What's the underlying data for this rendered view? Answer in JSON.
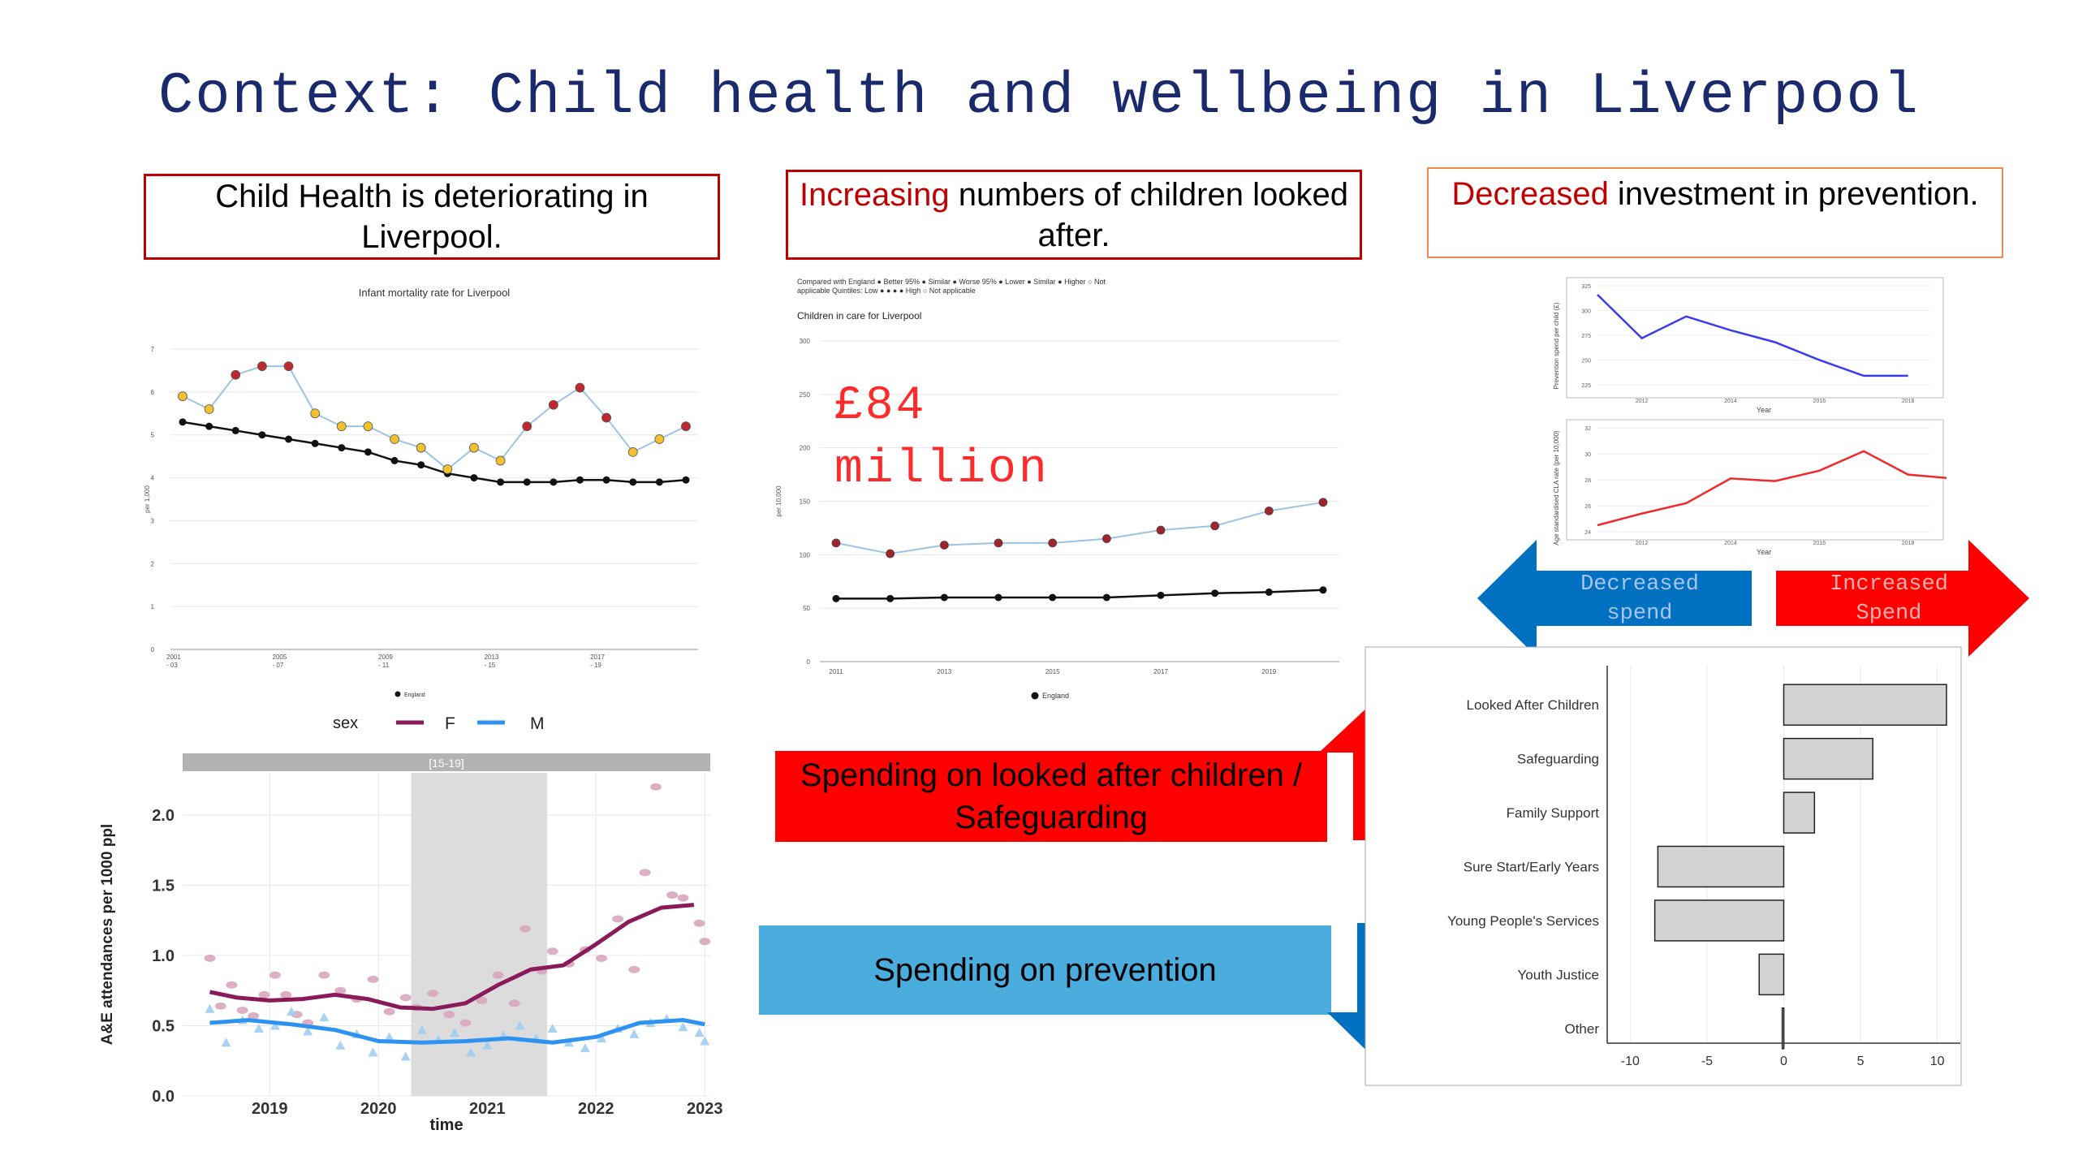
{
  "title": "Context: Child health and wellbeing in Liverpool",
  "headings": {
    "h1": "Child Health is deteriorating in Liverpool.",
    "h2_hl": "Increasing",
    "h2_rest": " numbers of children looked after.",
    "h3_hl": "Decreased",
    "h3_rest": " investment in prevention."
  },
  "money": {
    "line1": "£84",
    "line2": "million"
  },
  "arrows": {
    "decreased": "Decreased spend",
    "increased": "Increased Spend"
  },
  "banners": {
    "lac": "Spending on looked after children / Safeguarding",
    "prevention": "Spending on prevention"
  },
  "colors": {
    "red": "#ff0000",
    "blue": "#0070c0",
    "lightblue": "#4bacde",
    "navy": "#1a2a6c",
    "purple": "#8b1a5a",
    "mblue": "#2e93f0"
  },
  "chart_data": [
    {
      "id": "infant",
      "type": "line",
      "title": "Infant mortality rate for Liverpool",
      "ylabel": "per 1,000",
      "ylim": [
        0,
        7
      ],
      "yticks": [
        "0",
        "1",
        "2",
        "3",
        "4",
        "5",
        "6",
        "7"
      ],
      "xticks": [
        [
          "2001",
          "- 03"
        ],
        [
          "2005",
          "- 07"
        ],
        [
          "2009",
          "- 11"
        ],
        [
          "2013",
          "- 15"
        ],
        [
          "2017",
          "- 19"
        ]
      ],
      "legend": "England",
      "series": [
        {
          "name": "Liverpool",
          "values": [
            5.9,
            5.6,
            6.4,
            6.6,
            6.6,
            5.5,
            5.2,
            5.2,
            4.9,
            4.7,
            4.2,
            4.7,
            4.4,
            5.2,
            5.7,
            6.1,
            5.4,
            4.6,
            4.9,
            5.2
          ]
        },
        {
          "name": "England",
          "values": [
            5.3,
            5.2,
            5.1,
            5.0,
            4.9,
            4.8,
            4.7,
            4.6,
            4.4,
            4.3,
            4.1,
            4.0,
            3.9,
            3.9,
            3.9,
            3.95,
            3.95,
            3.9,
            3.9,
            3.95
          ]
        }
      ],
      "point_status": [
        "Similar",
        "Similar",
        "Worse",
        "Worse",
        "Worse",
        "Similar",
        "Similar",
        "Similar",
        "Similar",
        "Similar",
        "Similar",
        "Similar",
        "Similar",
        "Worse",
        "Worse",
        "Worse",
        "Worse",
        "Similar",
        "Similar",
        "Worse"
      ]
    },
    {
      "id": "care",
      "type": "line",
      "title": "Children in care for Liverpool",
      "legend_line1": "Compared with England  ● Better 95%  ● Similar  ● Worse 95%  ● Lower  ● Similar  ● Higher  ○ Not",
      "legend_line2": "applicable Quintiles: Low  ●  ●  ●  ● High  ○ Not applicable",
      "ylabel": "per 10,000",
      "ylim": [
        0,
        300
      ],
      "yticks": [
        "0",
        "50",
        "100",
        "150",
        "200",
        "250",
        "300"
      ],
      "xticks": [
        "2011",
        "2013",
        "2015",
        "2017",
        "2019"
      ],
      "legend": "England",
      "series": [
        {
          "name": "Liverpool",
          "values": [
            111,
            101,
            109,
            111,
            111,
            115,
            123,
            127,
            141,
            149
          ]
        },
        {
          "name": "England",
          "values": [
            59,
            59,
            60,
            60,
            60,
            60,
            62,
            64,
            65,
            67
          ]
        }
      ]
    },
    {
      "id": "prevention",
      "type": "line",
      "ylabel": "Prevention spend per child (£)",
      "xlabel": "Year",
      "ylim": [
        220,
        325
      ],
      "yticks": [
        "225",
        "250",
        "275",
        "300",
        "325"
      ],
      "xticks": [
        "2012",
        "2014",
        "2016",
        "2018"
      ],
      "x": [
        2011,
        2012,
        2013,
        2014,
        2015,
        2016,
        2017,
        2018
      ],
      "values": [
        316,
        272,
        294,
        280,
        268,
        250,
        234,
        234
      ],
      "color": "#3a3af0"
    },
    {
      "id": "cla",
      "type": "line",
      "ylabel": "Age standardised CLA rate (per 10,000)",
      "xlabel": "Year",
      "ylim": [
        24,
        32
      ],
      "yticks": [
        "24",
        "26",
        "28",
        "30",
        "32"
      ],
      "xticks": [
        "2012",
        "2014",
        "2016",
        "2018"
      ],
      "x": [
        2011,
        2012,
        2013,
        2014,
        2015,
        2016,
        2017,
        2018,
        2019
      ],
      "values": [
        24.5,
        25.4,
        26.2,
        28.1,
        27.9,
        28.7,
        30.2,
        28.4,
        28.1
      ],
      "color": "#ee2a2a"
    },
    {
      "id": "ae",
      "type": "scatter",
      "panel": "[15-19]",
      "xlabel": "time",
      "ylabel": "A&E attendances per 1000 ppl",
      "legend_title": "sex",
      "legend": [
        "F",
        "M"
      ],
      "ylim": [
        0,
        2.3
      ],
      "yticks": [
        "0.0",
        "0.5",
        "1.0",
        "1.5",
        "2.0"
      ],
      "xticks": [
        "2019",
        "2020",
        "2021",
        "2022",
        "2023"
      ],
      "xlim": [
        2018.2,
        2023.05
      ],
      "shade": [
        2020.3,
        2021.55
      ],
      "series": [
        {
          "name": "F",
          "smooth_x": [
            2018.45,
            2018.7,
            2019.0,
            2019.3,
            2019.6,
            2019.9,
            2020.2,
            2020.5,
            2020.8,
            2021.1,
            2021.4,
            2021.7,
            2022.0,
            2022.3,
            2022.6,
            2022.9
          ],
          "smooth_y": [
            0.74,
            0.7,
            0.68,
            0.69,
            0.72,
            0.69,
            0.63,
            0.62,
            0.66,
            0.79,
            0.9,
            0.93,
            1.08,
            1.24,
            1.34,
            1.36
          ],
          "points": [
            [
              2018.45,
              0.98
            ],
            [
              2018.55,
              0.64
            ],
            [
              2018.65,
              0.79
            ],
            [
              2018.75,
              0.61
            ],
            [
              2018.85,
              0.57
            ],
            [
              2018.95,
              0.72
            ],
            [
              2019.05,
              0.86
            ],
            [
              2019.15,
              0.72
            ],
            [
              2019.25,
              0.58
            ],
            [
              2019.35,
              0.52
            ],
            [
              2019.5,
              0.86
            ],
            [
              2019.65,
              0.75
            ],
            [
              2019.8,
              0.69
            ],
            [
              2019.95,
              0.83
            ],
            [
              2020.1,
              0.6
            ],
            [
              2020.25,
              0.7
            ],
            [
              2020.35,
              0.63
            ],
            [
              2020.5,
              0.73
            ],
            [
              2020.65,
              0.58
            ],
            [
              2020.8,
              0.52
            ],
            [
              2020.95,
              0.68
            ],
            [
              2021.1,
              0.86
            ],
            [
              2021.25,
              0.66
            ],
            [
              2021.35,
              1.19
            ],
            [
              2021.5,
              0.89
            ],
            [
              2021.6,
              1.03
            ],
            [
              2021.75,
              0.94
            ],
            [
              2021.9,
              1.04
            ],
            [
              2022.05,
              0.98
            ],
            [
              2022.2,
              1.26
            ],
            [
              2022.35,
              0.9
            ],
            [
              2022.45,
              1.59
            ],
            [
              2022.55,
              2.2
            ],
            [
              2022.7,
              1.43
            ],
            [
              2022.8,
              1.41
            ],
            [
              2022.95,
              1.23
            ],
            [
              2023.0,
              1.1
            ]
          ]
        },
        {
          "name": "M",
          "smooth_x": [
            2018.45,
            2018.8,
            2019.2,
            2019.6,
            2020.0,
            2020.4,
            2020.8,
            2021.2,
            2021.6,
            2022.0,
            2022.4,
            2022.8,
            2023.0
          ],
          "smooth_y": [
            0.52,
            0.54,
            0.51,
            0.47,
            0.39,
            0.38,
            0.39,
            0.41,
            0.38,
            0.42,
            0.52,
            0.54,
            0.51
          ],
          "points": [
            [
              2018.45,
              0.62
            ],
            [
              2018.6,
              0.38
            ],
            [
              2018.75,
              0.54
            ],
            [
              2018.9,
              0.48
            ],
            [
              2019.05,
              0.5
            ],
            [
              2019.2,
              0.6
            ],
            [
              2019.35,
              0.46
            ],
            [
              2019.5,
              0.56
            ],
            [
              2019.65,
              0.36
            ],
            [
              2019.8,
              0.44
            ],
            [
              2019.95,
              0.31
            ],
            [
              2020.1,
              0.42
            ],
            [
              2020.25,
              0.28
            ],
            [
              2020.4,
              0.47
            ],
            [
              2020.55,
              0.4
            ],
            [
              2020.7,
              0.45
            ],
            [
              2020.85,
              0.31
            ],
            [
              2021.0,
              0.36
            ],
            [
              2021.15,
              0.43
            ],
            [
              2021.3,
              0.5
            ],
            [
              2021.45,
              0.41
            ],
            [
              2021.6,
              0.48
            ],
            [
              2021.75,
              0.38
            ],
            [
              2021.9,
              0.34
            ],
            [
              2022.05,
              0.41
            ],
            [
              2022.2,
              0.48
            ],
            [
              2022.35,
              0.44
            ],
            [
              2022.5,
              0.52
            ],
            [
              2022.65,
              0.55
            ],
            [
              2022.8,
              0.49
            ],
            [
              2022.95,
              0.45
            ],
            [
              2023.0,
              0.39
            ]
          ]
        }
      ]
    },
    {
      "id": "spend",
      "type": "bar",
      "orientation": "horizontal",
      "categories": [
        "Looked After Children",
        "Safeguarding",
        "Family Support",
        "Sure Start/Early Years",
        "Young People's Services",
        "Youth Justice",
        "Other"
      ],
      "values": [
        10.6,
        5.8,
        2.0,
        -8.2,
        -8.4,
        -1.6,
        -0.1
      ],
      "xlim": [
        -11.5,
        11.5
      ],
      "xticks": [
        "-10",
        "-5",
        "0",
        "5",
        "10"
      ],
      "xtick_values": [
        -10,
        -5,
        0,
        5,
        10
      ]
    }
  ]
}
